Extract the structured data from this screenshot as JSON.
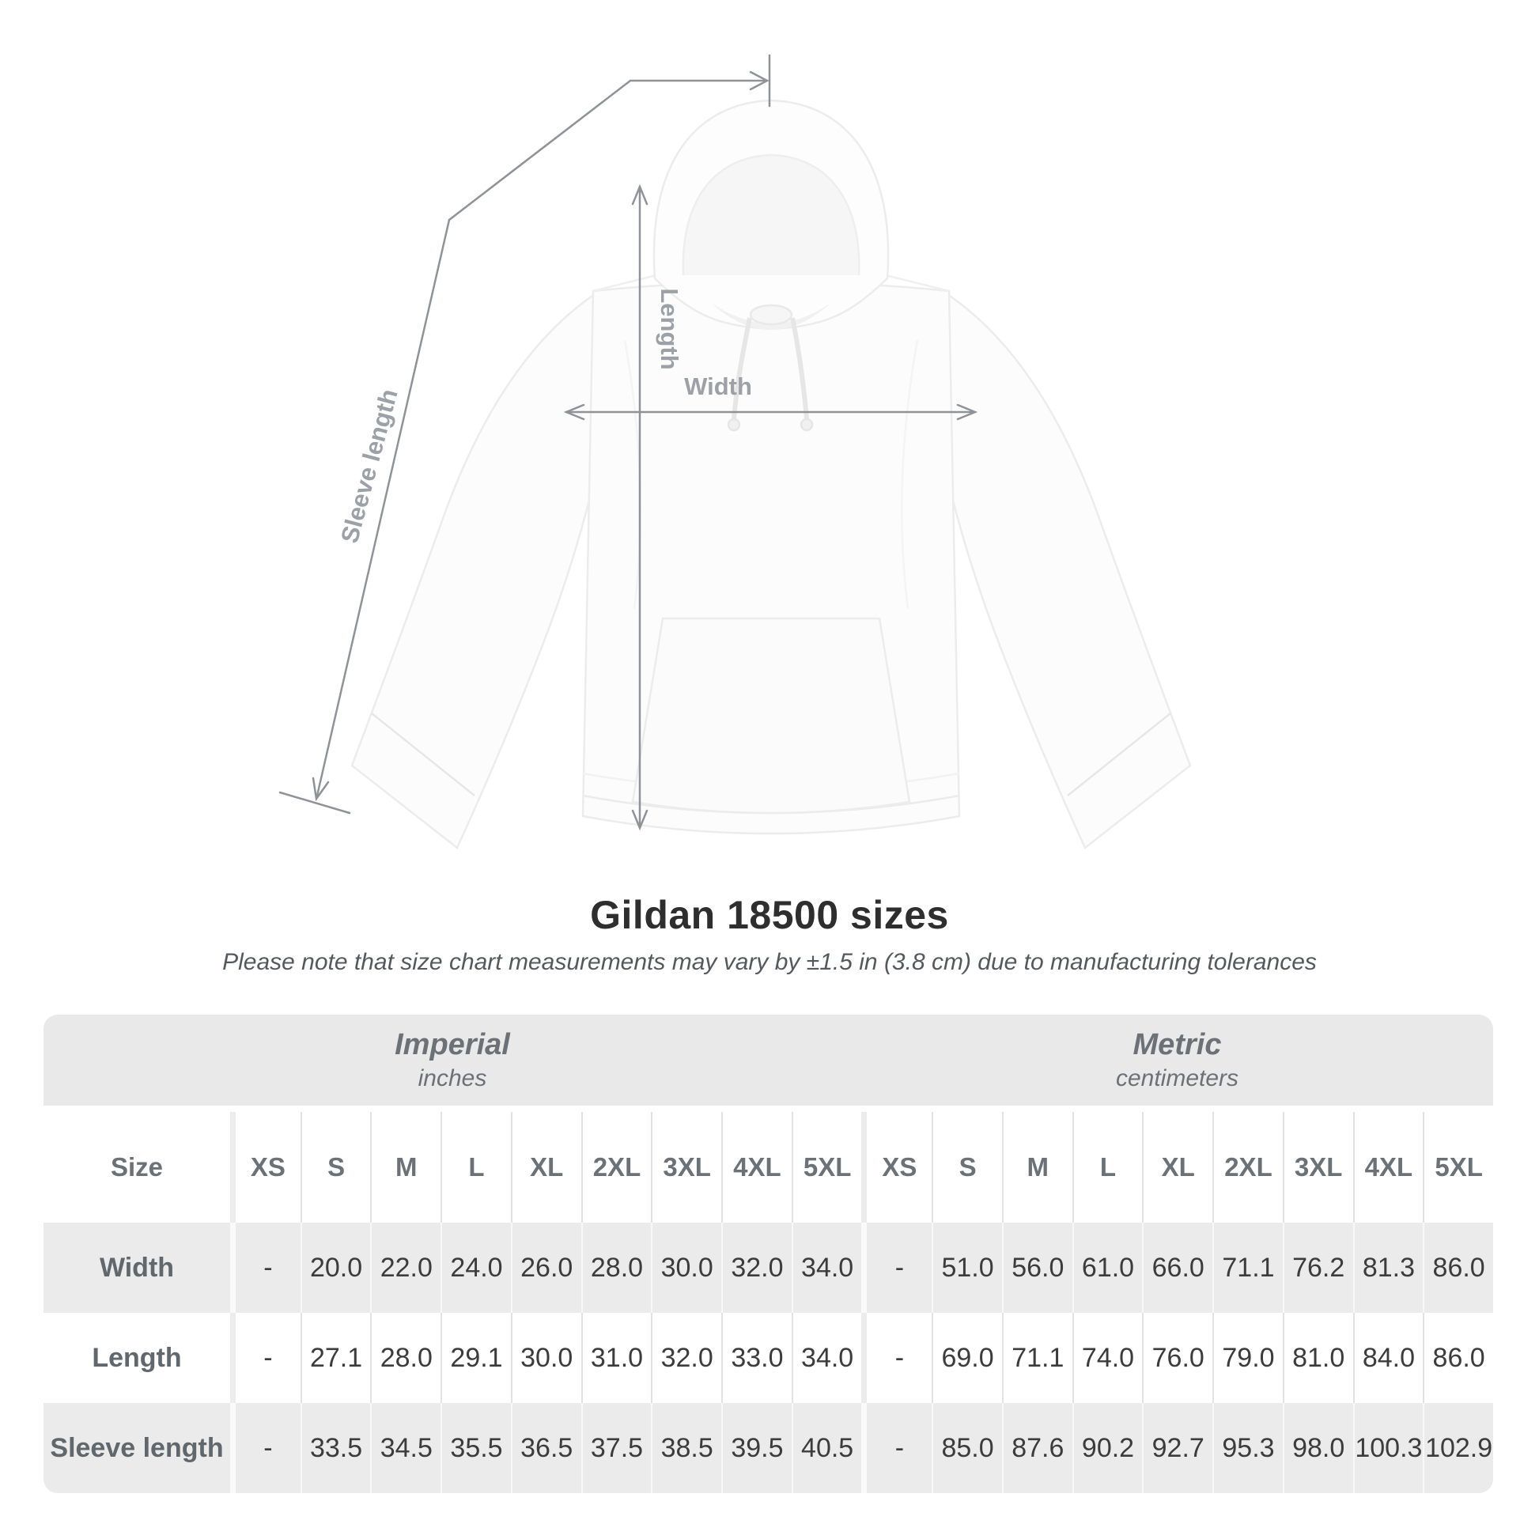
{
  "diagram": {
    "length_label": "Length",
    "width_label": "Width",
    "sleeve_label": "Sleeve length"
  },
  "title": "Gildan 18500 sizes",
  "note": "Please note that size chart measurements may vary by ±1.5 in (3.8 cm) due to manufacturing tolerances",
  "table": {
    "size_label": "Size",
    "groups": [
      {
        "name": "Imperial",
        "unit": "inches"
      },
      {
        "name": "Metric",
        "unit": "centimeters"
      }
    ],
    "sizes": [
      "XS",
      "S",
      "M",
      "L",
      "XL",
      "2XL",
      "3XL",
      "4XL",
      "5XL"
    ],
    "rows": [
      {
        "label": "Width",
        "imperial": [
          "-",
          "20.0",
          "22.0",
          "24.0",
          "26.0",
          "28.0",
          "30.0",
          "32.0",
          "34.0"
        ],
        "metric": [
          "-",
          "51.0",
          "56.0",
          "61.0",
          "66.0",
          "71.1",
          "76.2",
          "81.3",
          "86.0"
        ]
      },
      {
        "label": "Length",
        "imperial": [
          "-",
          "27.1",
          "28.0",
          "29.1",
          "30.0",
          "31.0",
          "32.0",
          "33.0",
          "34.0"
        ],
        "metric": [
          "-",
          "69.0",
          "71.1",
          "74.0",
          "76.0",
          "79.0",
          "81.0",
          "84.0",
          "86.0"
        ]
      },
      {
        "label": "Sleeve length",
        "imperial": [
          "-",
          "33.5",
          "34.5",
          "35.5",
          "36.5",
          "37.5",
          "38.5",
          "39.5",
          "40.5"
        ],
        "metric": [
          "-",
          "85.0",
          "87.6",
          "90.2",
          "92.7",
          "95.3",
          "98.0",
          "100.3",
          "102.9"
        ]
      }
    ]
  },
  "colors": {
    "band_gray": "#e9e9e9",
    "row_gray": "#ebebeb",
    "dimension_line": "#8e9398",
    "diagram_label": "#9ba1a6",
    "table_label": "#60676d",
    "value_text": "#3c3c3c"
  },
  "chart_data": {
    "type": "table",
    "title": "Gildan 18500 sizes",
    "subtitle": "Please note that size chart measurements may vary by ±1.5 in (3.8 cm) due to manufacturing tolerances",
    "column_groups": [
      "Imperial (inches)",
      "Metric (centimeters)"
    ],
    "columns": [
      "Size",
      "XS",
      "S",
      "M",
      "L",
      "XL",
      "2XL",
      "3XL",
      "4XL",
      "5XL",
      "XS",
      "S",
      "M",
      "L",
      "XL",
      "2XL",
      "3XL",
      "4XL",
      "5XL"
    ],
    "rows": [
      [
        "Width",
        "-",
        "20.0",
        "22.0",
        "24.0",
        "26.0",
        "28.0",
        "30.0",
        "32.0",
        "34.0",
        "-",
        "51.0",
        "56.0",
        "61.0",
        "66.0",
        "71.1",
        "76.2",
        "81.3",
        "86.0"
      ],
      [
        "Length",
        "-",
        "27.1",
        "28.0",
        "29.1",
        "30.0",
        "31.0",
        "32.0",
        "33.0",
        "34.0",
        "-",
        "69.0",
        "71.1",
        "74.0",
        "76.0",
        "79.0",
        "81.0",
        "84.0",
        "86.0"
      ],
      [
        "Sleeve length",
        "-",
        "33.5",
        "34.5",
        "35.5",
        "36.5",
        "37.5",
        "38.5",
        "39.5",
        "40.5",
        "-",
        "85.0",
        "87.6",
        "90.2",
        "92.7",
        "95.3",
        "98.0",
        "100.3",
        "102.9"
      ]
    ]
  }
}
